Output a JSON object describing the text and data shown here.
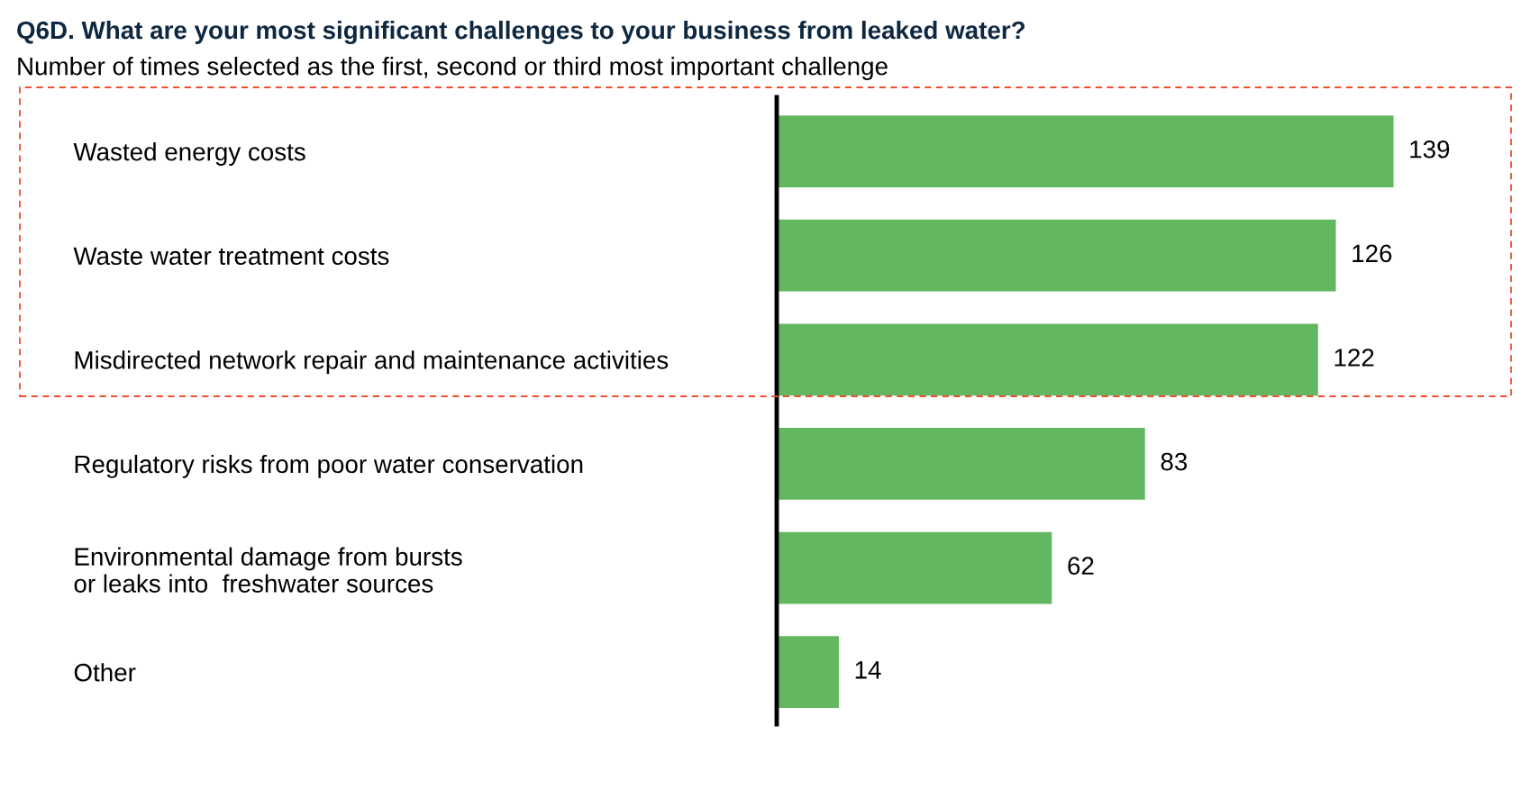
{
  "chart_data": {
    "type": "bar",
    "orientation": "horizontal",
    "title": "Q6D. What are your most significant challenges to your business from leaked water?",
    "subtitle": "Number of times selected as the first, second or third most important challenge",
    "categories": [
      "Wasted energy costs",
      "Waste water treatment costs",
      "Misdirected network repair and maintenance activities",
      "Regulatory risks from poor water conservation",
      "Environmental damage from bursts\nor leaks into  freshwater sources",
      "Other"
    ],
    "values": [
      139,
      126,
      122,
      83,
      62,
      14
    ],
    "color": "#63b761",
    "data_labels": true,
    "tick_labels": "y"
  }
}
